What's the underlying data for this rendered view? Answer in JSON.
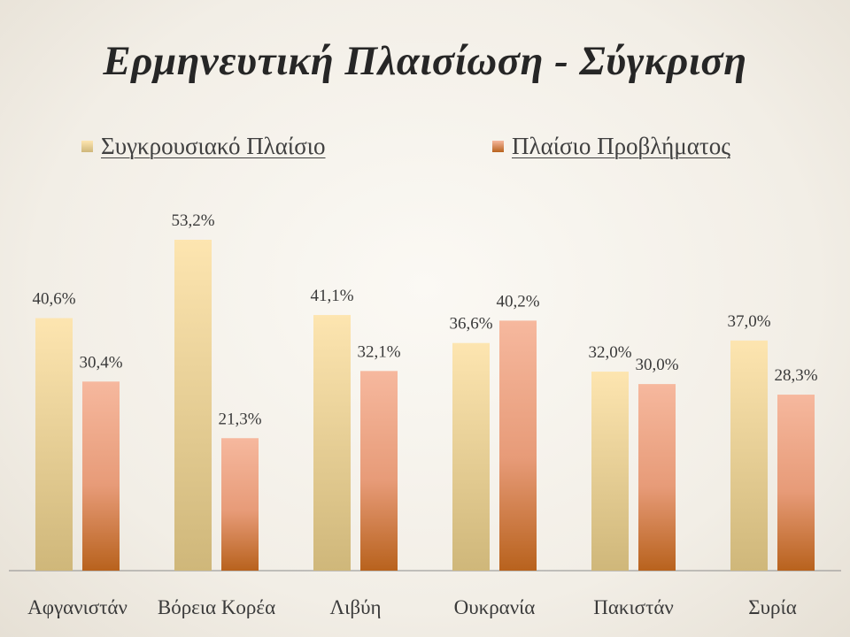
{
  "slide": {
    "title": "Ερμηνευτική Πλαισίωση - Σύγκριση"
  },
  "chart_data": {
    "type": "bar",
    "categories": [
      "Αφγανιστάν",
      "Βόρεια Κορέα",
      "Λιβύη",
      "Ουκρανία",
      "Πακιστάν",
      "Συρία"
    ],
    "series": [
      {
        "name": "Συγκρουσιακό Πλαίσιο",
        "values": [
          40.6,
          53.2,
          41.1,
          36.6,
          32.0,
          37.0
        ],
        "labels": [
          "40,6%",
          "53,2%",
          "41,1%",
          "36,6%",
          "32,0%",
          "37,0%"
        ],
        "color_top": "#fde5b0",
        "color_bottom": "#cfb77a"
      },
      {
        "name": "Πλαίσιο Προβλήματος",
        "values": [
          30.4,
          21.3,
          32.1,
          40.2,
          30.0,
          28.3
        ],
        "labels": [
          "30,4%",
          "21,3%",
          "32,1%",
          "40,2%",
          "30,0%",
          "28,3%"
        ],
        "color_top": "#f6b89e",
        "color_bottom": "#b8621d"
      }
    ],
    "ylim": [
      0,
      58
    ],
    "grid": false,
    "legend_position": "top"
  }
}
